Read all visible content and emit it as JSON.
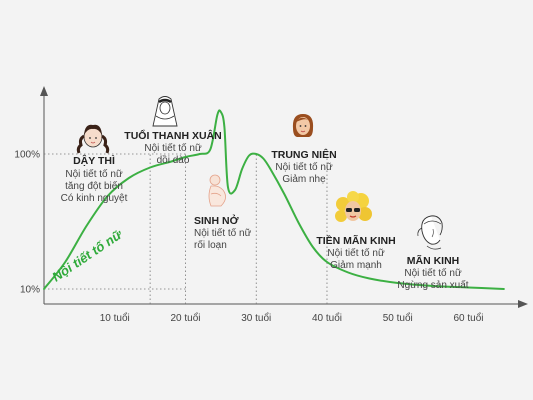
{
  "chart_data": {
    "type": "line",
    "title": "",
    "series": [
      {
        "name": "Nội tiết tố nữ",
        "color": "#3cb043",
        "x": [
          0,
          3,
          6,
          9,
          12,
          15,
          18,
          20,
          22,
          23.5,
          24.5,
          25,
          25.5,
          26,
          27,
          28,
          29,
          30,
          31,
          32,
          34,
          36,
          38,
          40,
          43,
          46,
          50,
          55,
          60,
          65
        ],
        "y": [
          10,
          28,
          52,
          72,
          84,
          91,
          95,
          98,
          100,
          103,
          126,
          128,
          118,
          78,
          76,
          90,
          99,
          100,
          97,
          90,
          73,
          54,
          38,
          28,
          21,
          17,
          14,
          12,
          11,
          10
        ]
      }
    ],
    "xlim": [
      0,
      67
    ],
    "ylim": [
      0,
      140
    ],
    "x_ticks": [
      {
        "value": 10,
        "label": "10 tuổi"
      },
      {
        "value": 20,
        "label": "20 tuổi"
      },
      {
        "value": 30,
        "label": "30 tuổi"
      },
      {
        "value": 40,
        "label": "40 tuổi"
      },
      {
        "value": 50,
        "label": "50 tuổi"
      },
      {
        "value": 60,
        "label": "60 tuổi"
      }
    ],
    "y_ticks": [
      {
        "value": 100,
        "label": "100%"
      },
      {
        "value": 10,
        "label": "10%"
      }
    ],
    "reference_lines_x": [
      15,
      20,
      30,
      40
    ],
    "curve_label": "Nội tiết tố nữ",
    "annotations": [
      {
        "title": "DẬY THÌ",
        "lines": [
          "Nội tiết tố nữ",
          "tăng đột biến",
          "Có kinh nguyệt"
        ],
        "icon": "braided-girl-icon"
      },
      {
        "title": "TUỔI THANH XUÂN",
        "lines": [
          "Nội tiết tố nữ",
          "dồi dào"
        ],
        "icon": "bride-veil-icon"
      },
      {
        "title": "SINH NỞ",
        "lines": [
          "Nội tiết tố nữ",
          "rối loạn"
        ],
        "icon": "pregnant-woman-icon"
      },
      {
        "title": "TRUNG NIÊN",
        "lines": [
          "Nội tiết tố nữ",
          "Giảm nhẹ"
        ],
        "icon": "middle-aged-woman-icon"
      },
      {
        "title": "TIỀN MÃN KINH",
        "lines": [
          "Nội tiết tố nữ",
          "Giảm mạnh"
        ],
        "icon": "blonde-woman-sunglasses-icon"
      },
      {
        "title": "MÃN KINH",
        "lines": [
          "Nội tiết tố nữ",
          "Ngừng sản xuất"
        ],
        "icon": "older-woman-sketch-icon"
      }
    ]
  }
}
